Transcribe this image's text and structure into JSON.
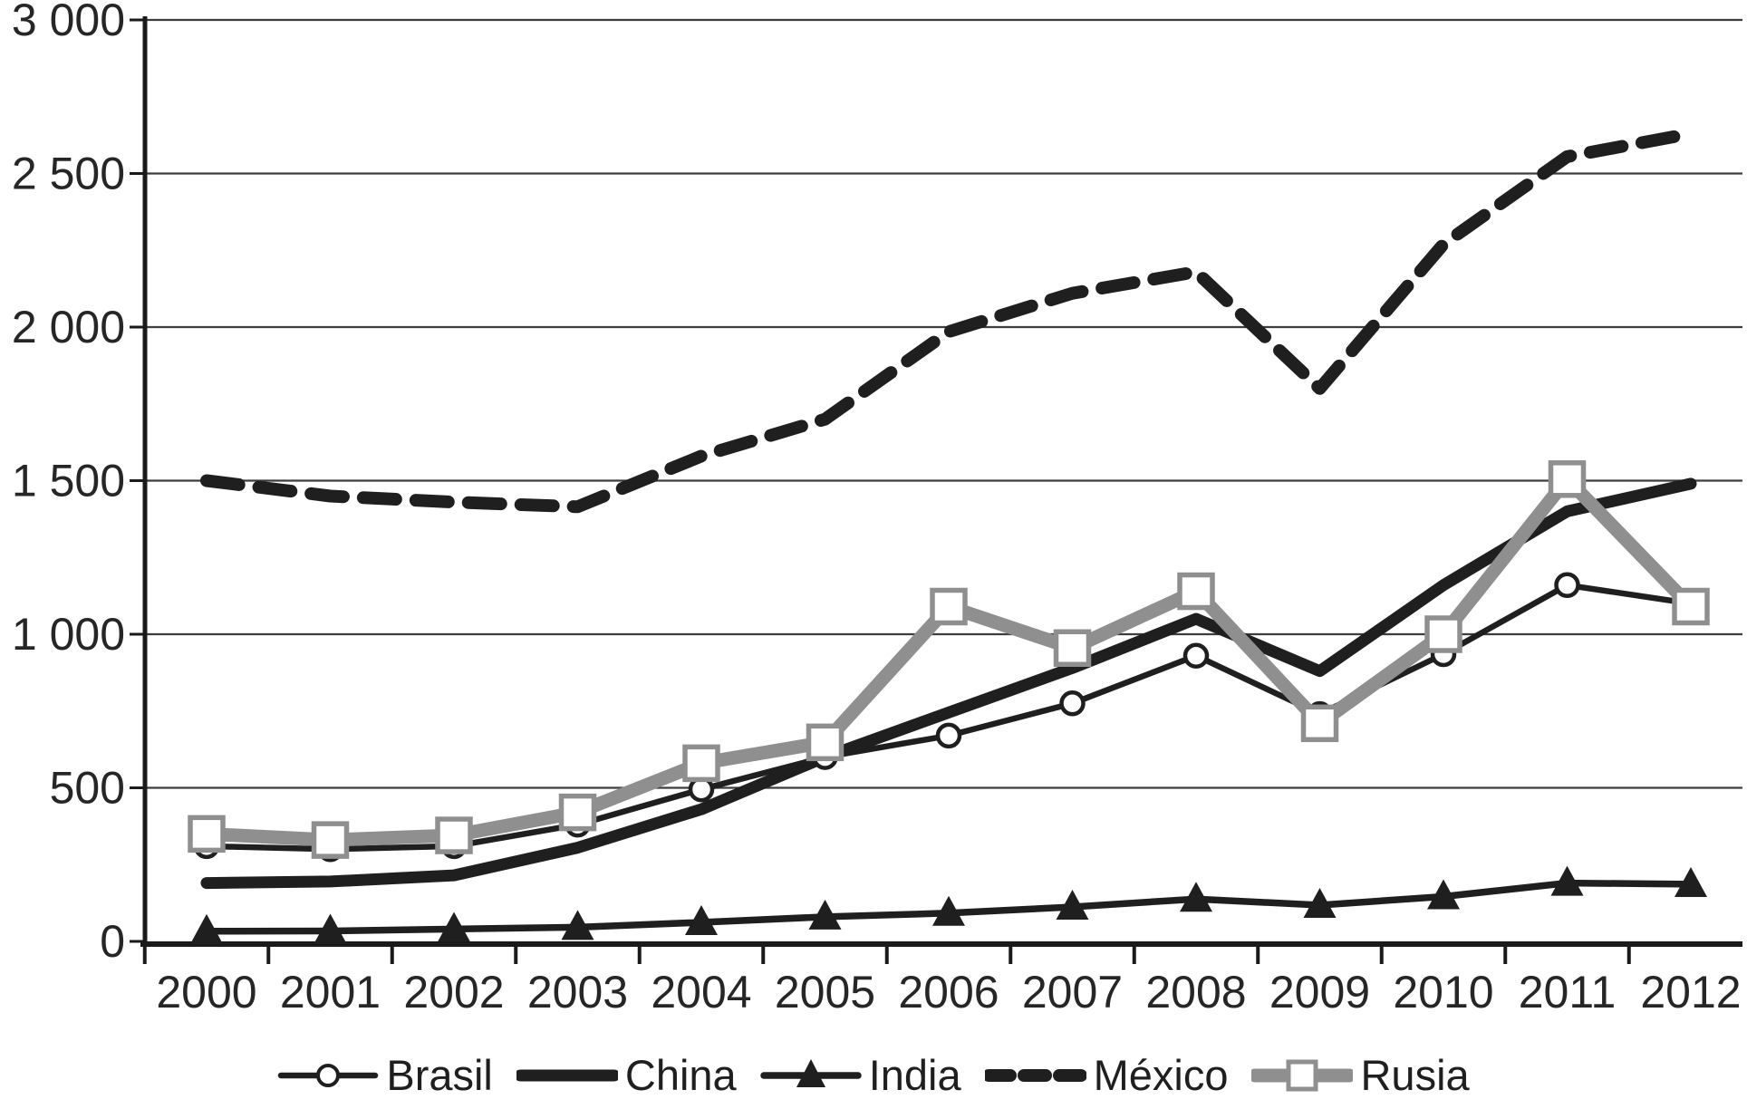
{
  "chart_data": {
    "type": "line",
    "title": "",
    "xlabel": "",
    "ylabel": "",
    "categories": [
      "2000",
      "2001",
      "2002",
      "2003",
      "2004",
      "2005",
      "2006",
      "2007",
      "2008",
      "2009",
      "2010",
      "2011",
      "2012"
    ],
    "series": [
      {
        "name": "Brasil",
        "style": "thin-solid-black",
        "marker": "open-circle",
        "values": [
          310,
          300,
          310,
          380,
          495,
          600,
          670,
          775,
          930,
          740,
          935,
          1160,
          1100
        ]
      },
      {
        "name": "China",
        "style": "thick-solid-black",
        "marker": "none",
        "values": [
          190,
          195,
          215,
          305,
          430,
          600,
          745,
          890,
          1050,
          880,
          1160,
          1400,
          1490
        ]
      },
      {
        "name": "India",
        "style": "medium-solid-black",
        "marker": "filled-triangle",
        "values": [
          33,
          34,
          40,
          46,
          62,
          80,
          92,
          112,
          138,
          118,
          146,
          190,
          186
        ]
      },
      {
        "name": "México",
        "style": "thick-dashed-black",
        "marker": "none",
        "values": [
          1500,
          1450,
          1430,
          1415,
          1580,
          1700,
          1985,
          2110,
          2180,
          1800,
          2270,
          2555,
          2630
        ]
      },
      {
        "name": "Rusia",
        "style": "thick-solid-gray",
        "marker": "open-square",
        "values": [
          350,
          330,
          345,
          420,
          580,
          648,
          1090,
          955,
          1140,
          710,
          1000,
          1505,
          1090
        ]
      }
    ],
    "ylim": [
      0,
      3000
    ],
    "ytick_interval": 500,
    "y_tick_labels": [
      "0",
      "500",
      "1 000",
      "1 500",
      "2 000",
      "2 500",
      "3 000"
    ],
    "grid": "horizontal",
    "legend_position": "bottom",
    "colors": {
      "line_black": "#1f1f1f",
      "line_gray": "#8f8f8f",
      "grid": "#3d3d3d",
      "axis": "#1a1a1a",
      "text": "#262626"
    }
  }
}
